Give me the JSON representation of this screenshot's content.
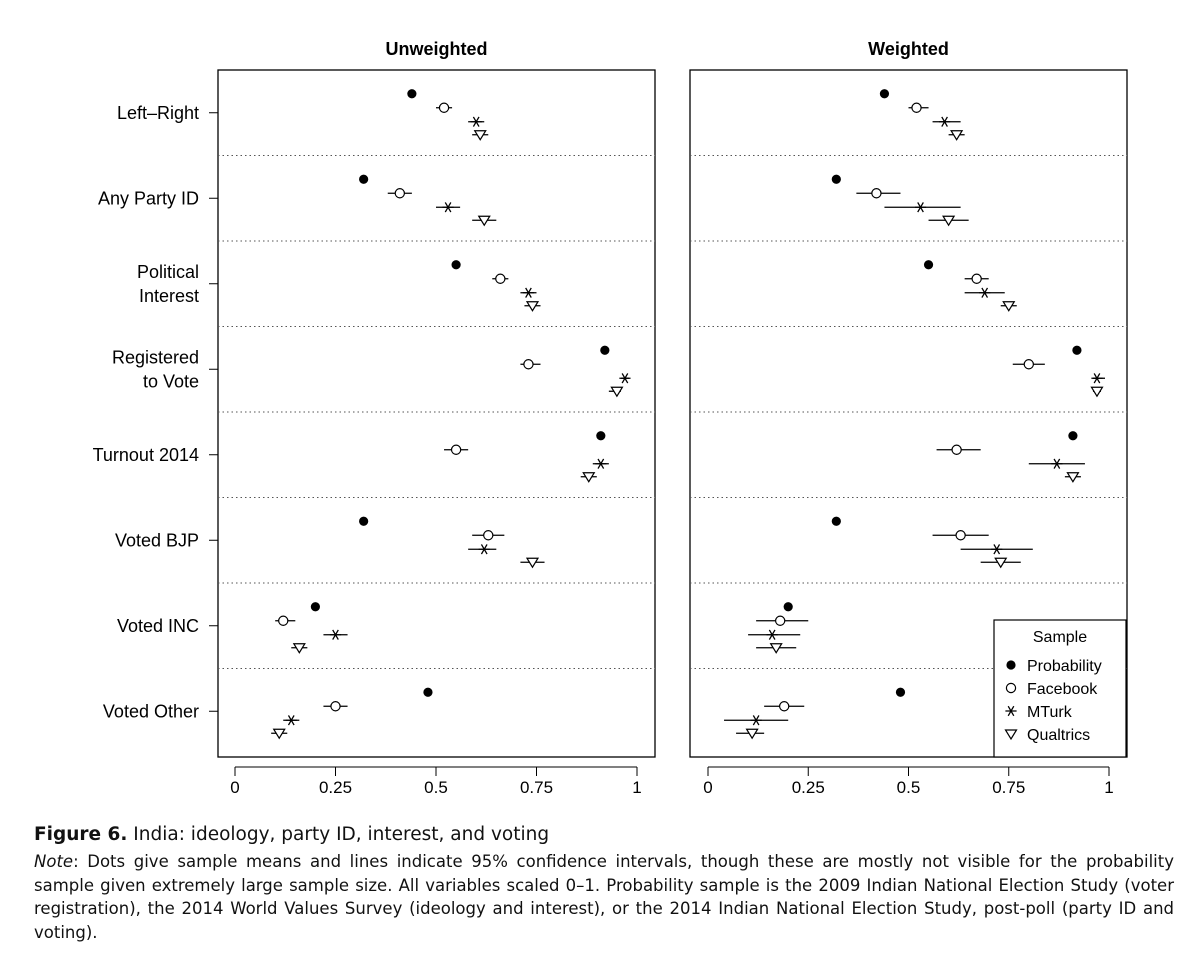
{
  "chart_data": {
    "type": "dot-and-whisker",
    "panels": [
      {
        "title": "Unweighted",
        "series": [
          {
            "name": "Probability",
            "values": [
              0.44,
              0.32,
              0.55,
              0.92,
              0.91,
              0.32,
              0.2,
              0.48
            ],
            "ci": [
              null,
              null,
              null,
              null,
              null,
              null,
              null,
              null
            ]
          },
          {
            "name": "Facebook",
            "values": [
              0.52,
              0.41,
              0.66,
              0.73,
              0.55,
              0.63,
              0.12,
              0.25
            ],
            "ci": [
              [
                0.5,
                0.54
              ],
              [
                0.38,
                0.44
              ],
              [
                0.64,
                0.68
              ],
              [
                0.71,
                0.76
              ],
              [
                0.52,
                0.58
              ],
              [
                0.59,
                0.67
              ],
              [
                0.1,
                0.15
              ],
              [
                0.22,
                0.28
              ]
            ]
          },
          {
            "name": "MTurk",
            "values": [
              0.6,
              0.53,
              0.73,
              0.97,
              0.91,
              0.62,
              0.25,
              0.14
            ],
            "ci": [
              [
                0.58,
                0.62
              ],
              [
                0.5,
                0.56
              ],
              [
                0.71,
                0.75
              ],
              [
                0.96,
                0.98
              ],
              [
                0.89,
                0.93
              ],
              [
                0.58,
                0.65
              ],
              [
                0.22,
                0.28
              ],
              [
                0.12,
                0.16
              ]
            ]
          },
          {
            "name": "Qualtrics",
            "values": [
              0.61,
              0.62,
              0.74,
              0.95,
              0.88,
              0.74,
              0.16,
              0.11
            ],
            "ci": [
              [
                0.59,
                0.63
              ],
              [
                0.59,
                0.65
              ],
              [
                0.72,
                0.76
              ],
              [
                0.93,
                0.96
              ],
              [
                0.86,
                0.9
              ],
              [
                0.71,
                0.77
              ],
              [
                0.14,
                0.18
              ],
              [
                0.09,
                0.13
              ]
            ]
          }
        ]
      },
      {
        "title": "Weighted",
        "series": [
          {
            "name": "Probability",
            "values": [
              0.44,
              0.32,
              0.55,
              0.92,
              0.91,
              0.32,
              0.2,
              0.48
            ],
            "ci": [
              null,
              null,
              null,
              null,
              null,
              null,
              null,
              null
            ]
          },
          {
            "name": "Facebook",
            "values": [
              0.52,
              0.42,
              0.67,
              0.8,
              0.62,
              0.63,
              0.18,
              0.19
            ],
            "ci": [
              [
                0.5,
                0.55
              ],
              [
                0.37,
                0.48
              ],
              [
                0.64,
                0.7
              ],
              [
                0.76,
                0.84
              ],
              [
                0.57,
                0.68
              ],
              [
                0.56,
                0.7
              ],
              [
                0.12,
                0.25
              ],
              [
                0.14,
                0.24
              ]
            ]
          },
          {
            "name": "MTurk",
            "values": [
              0.59,
              0.53,
              0.69,
              0.97,
              0.87,
              0.72,
              0.16,
              0.12
            ],
            "ci": [
              [
                0.56,
                0.63
              ],
              [
                0.44,
                0.63
              ],
              [
                0.64,
                0.74
              ],
              [
                0.96,
                0.99
              ],
              [
                0.8,
                0.94
              ],
              [
                0.63,
                0.81
              ],
              [
                0.1,
                0.23
              ],
              [
                0.04,
                0.2
              ]
            ]
          },
          {
            "name": "Qualtrics",
            "values": [
              0.62,
              0.6,
              0.75,
              0.97,
              0.91,
              0.73,
              0.17,
              0.11
            ],
            "ci": [
              [
                0.6,
                0.64
              ],
              [
                0.55,
                0.65
              ],
              [
                0.73,
                0.77
              ],
              [
                0.96,
                0.98
              ],
              [
                0.89,
                0.93
              ],
              [
                0.68,
                0.78
              ],
              [
                0.12,
                0.22
              ],
              [
                0.07,
                0.14
              ]
            ]
          }
        ]
      }
    ],
    "categories": [
      "Left–Right",
      "Any Party ID",
      "Political\nInterest",
      "Registered\nto Vote",
      "Turnout 2014",
      "Voted BJP",
      "Voted INC",
      "Voted Other"
    ],
    "xlim": [
      0,
      1
    ],
    "xticks": [
      0,
      0.25,
      0.5,
      0.75,
      1
    ],
    "xtick_labels": [
      "0",
      "0.25",
      "0.5",
      "0.75",
      "1"
    ],
    "markers": {
      "Probability": "filled-circle",
      "Facebook": "open-circle",
      "MTurk": "asterisk",
      "Qualtrics": "open-triangle-down"
    },
    "legend": {
      "title": "Sample",
      "entries": [
        "Probability",
        "Facebook",
        "MTurk",
        "Qualtrics"
      ],
      "position": "bottom-right of Weighted panel"
    }
  },
  "caption": {
    "figure_label": "Figure 6.",
    "title": "India: ideology, party ID, interest, and voting",
    "note_label": "Note",
    "note_text": ": Dots give sample means and lines indicate 95% confidence intervals, though these are mostly not visible for the probability sample given extremely large sample size. All variables scaled 0–1. Probability sample is the 2009 Indian National Election Study (voter registration), the 2014 World Values Survey (ideology and interest), or the 2014 Indian National Election Study, post-poll (party ID and voting)."
  }
}
